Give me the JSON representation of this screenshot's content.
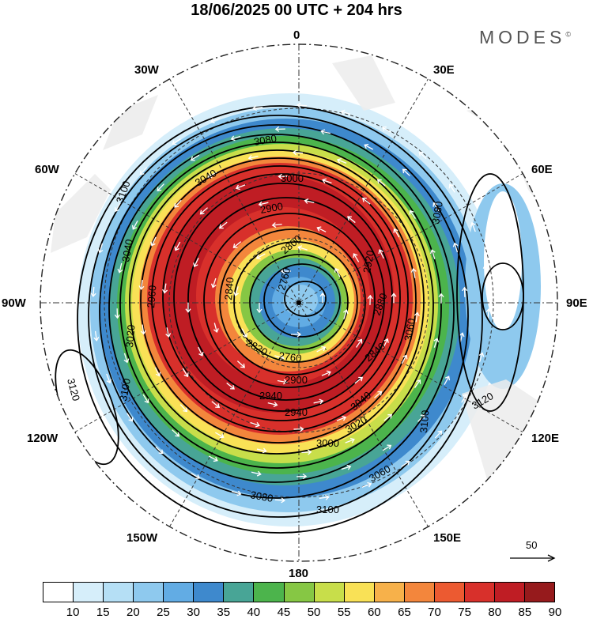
{
  "title": "18/06/2025  00 UTC  + 204 hrs",
  "brand": "MODES",
  "brand_mark": "©",
  "longitude_labels": {
    "lon_0": "0",
    "lon_30e": "30E",
    "lon_60e": "60E",
    "lon_90e": "90E",
    "lon_120e": "120E",
    "lon_150e": "150E",
    "lon_180": "180",
    "lon_150w": "150W",
    "lon_120w": "120W",
    "lon_90w": "90W",
    "lon_60w": "60W",
    "lon_30w": "30W"
  },
  "contour_labels": [
    "2760",
    "2760",
    "2800",
    "2820",
    "2840",
    "2840",
    "2880",
    "2900",
    "2900",
    "2920",
    "2940",
    "2940",
    "2960",
    "3000",
    "3000",
    "3020",
    "3020",
    "3040",
    "3040",
    "3040",
    "3060",
    "3060",
    "3080",
    "3080",
    "3080",
    "3100",
    "3100",
    "3100",
    "3100",
    "3120",
    "3120"
  ],
  "vector_reference": {
    "label": "50"
  },
  "colorbar": {
    "ticks": [
      "10",
      "15",
      "20",
      "25",
      "30",
      "35",
      "40",
      "45",
      "50",
      "55",
      "60",
      "65",
      "70",
      "75",
      "80",
      "85",
      "90"
    ],
    "colors": [
      "#ffffff",
      "#d6eefa",
      "#b5dff5",
      "#8ec9ee",
      "#62ace4",
      "#3e89cd",
      "#48a596",
      "#4cb44c",
      "#86c744",
      "#c8de4a",
      "#f9e156",
      "#f7b14a",
      "#f3863c",
      "#ec5a31",
      "#d8302b",
      "#bf1d24",
      "#961a1c"
    ]
  },
  "map_colors": {
    "land": "#ececec",
    "grid": "#333333",
    "contour": "#000000",
    "arrow": "#ffffff"
  }
}
